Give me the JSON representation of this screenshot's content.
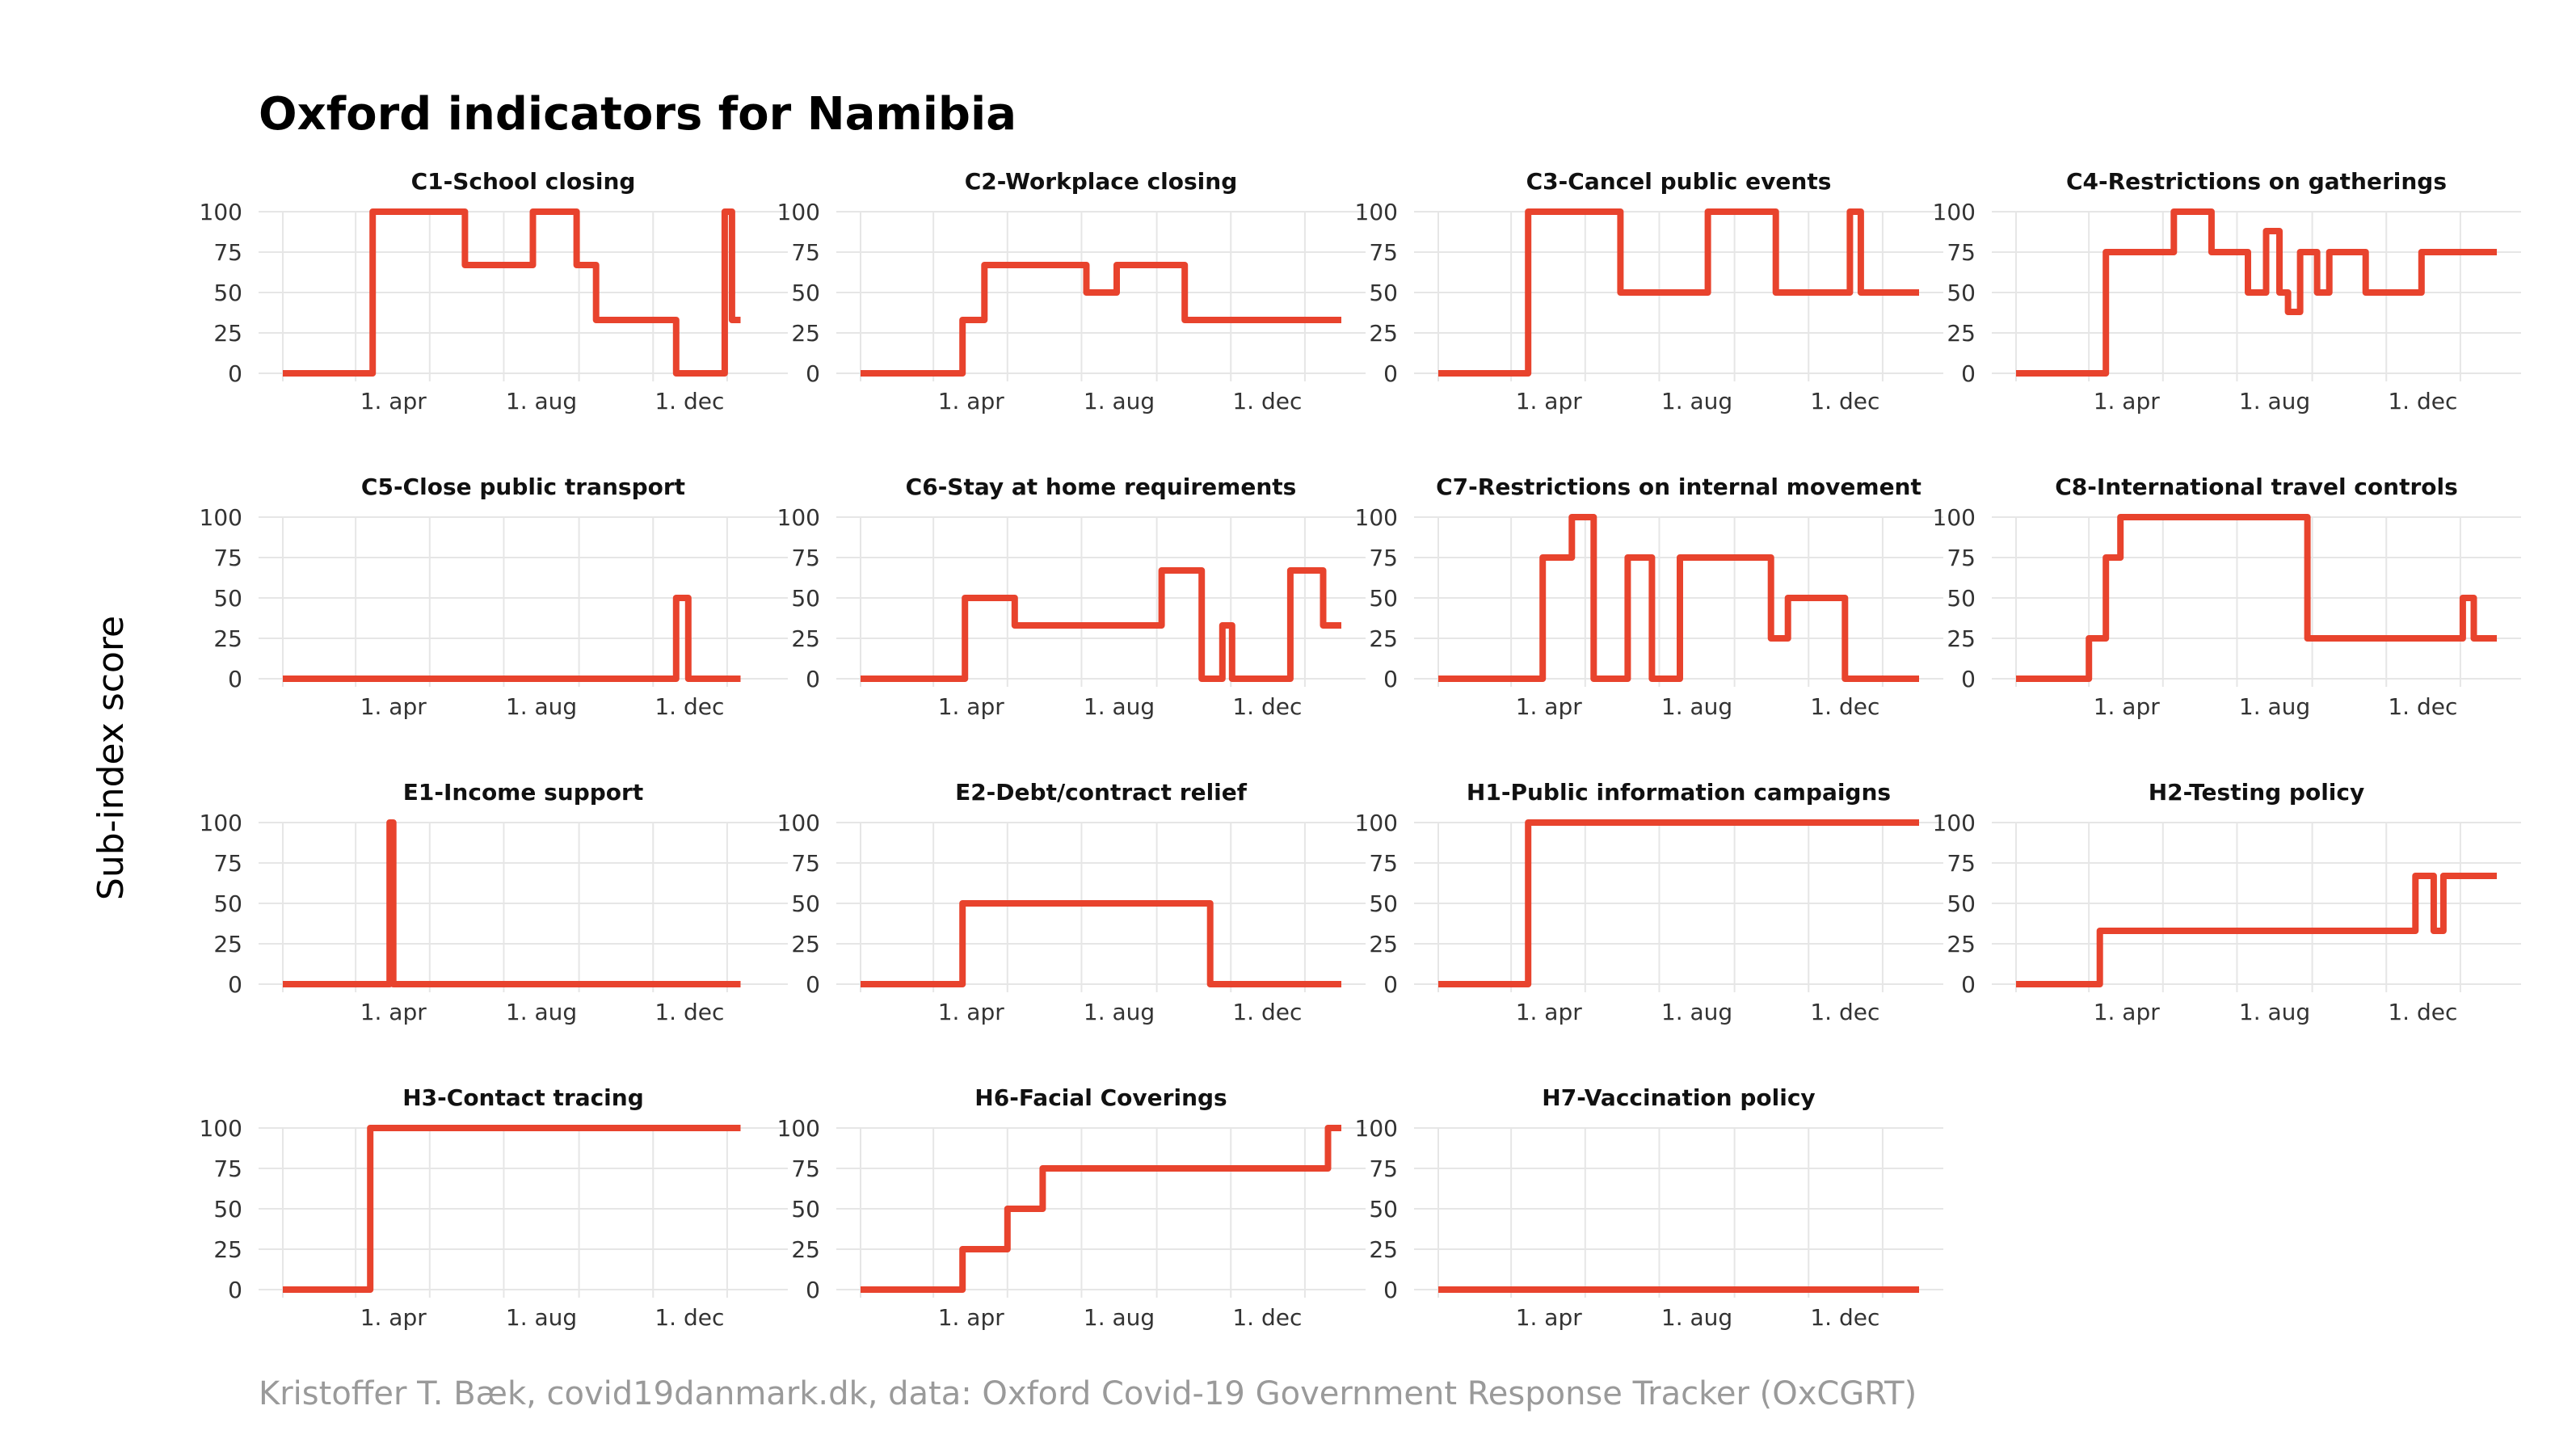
{
  "title": "Oxford indicators for Namibia",
  "ylabel": "Sub-index score",
  "caption": "Kristoffer T. Bæk, covid19danmark.dk, data: Oxford Covid-19 Government Response Tracker (OxCGRT)",
  "colors": {
    "line": "#e8432d",
    "grid": "#e6e6e6",
    "caption": "#9a9a9a"
  },
  "chart_data": {
    "type": "line",
    "x_unit": "date",
    "xlim": [
      "2020-01-01",
      "2021-01-31"
    ],
    "ylim": [
      0,
      100
    ],
    "yticks": [
      0,
      25,
      50,
      75,
      100
    ],
    "xticks": [
      {
        "date": "2020-04-01",
        "label": "1. apr"
      },
      {
        "date": "2020-08-01",
        "label": "1. aug"
      },
      {
        "date": "2020-12-01",
        "label": "1. dec"
      }
    ],
    "grid": true,
    "panels": [
      {
        "title": "C1-School closing",
        "points": [
          [
            "2020-01-01",
            0
          ],
          [
            "2020-03-15",
            0
          ],
          [
            "2020-03-15",
            100
          ],
          [
            "2020-05-30",
            100
          ],
          [
            "2020-05-30",
            67
          ],
          [
            "2020-07-25",
            67
          ],
          [
            "2020-07-25",
            100
          ],
          [
            "2020-08-30",
            100
          ],
          [
            "2020-08-30",
            67
          ],
          [
            "2020-09-15",
            67
          ],
          [
            "2020-09-15",
            33
          ],
          [
            "2020-11-20",
            33
          ],
          [
            "2020-11-20",
            0
          ],
          [
            "2020-12-30",
            0
          ],
          [
            "2020-12-30",
            100
          ],
          [
            "2021-01-05",
            100
          ],
          [
            "2021-01-05",
            33
          ],
          [
            "2021-01-12",
            33
          ]
        ]
      },
      {
        "title": "C2-Workplace closing",
        "points": [
          [
            "2020-01-01",
            0
          ],
          [
            "2020-03-25",
            0
          ],
          [
            "2020-03-25",
            33
          ],
          [
            "2020-04-12",
            33
          ],
          [
            "2020-04-12",
            67
          ],
          [
            "2020-07-05",
            67
          ],
          [
            "2020-07-05",
            50
          ],
          [
            "2020-07-30",
            50
          ],
          [
            "2020-07-30",
            67
          ],
          [
            "2020-09-24",
            67
          ],
          [
            "2020-09-24",
            33
          ],
          [
            "2021-01-31",
            33
          ]
        ]
      },
      {
        "title": "C3-Cancel public events",
        "points": [
          [
            "2020-01-01",
            0
          ],
          [
            "2020-03-15",
            0
          ],
          [
            "2020-03-15",
            100
          ],
          [
            "2020-05-30",
            100
          ],
          [
            "2020-05-30",
            50
          ],
          [
            "2020-08-10",
            50
          ],
          [
            "2020-08-10",
            100
          ],
          [
            "2020-10-05",
            100
          ],
          [
            "2020-10-05",
            50
          ],
          [
            "2020-12-05",
            50
          ],
          [
            "2020-12-05",
            100
          ],
          [
            "2020-12-14",
            100
          ],
          [
            "2020-12-14",
            50
          ],
          [
            "2021-01-31",
            50
          ]
        ]
      },
      {
        "title": "C4-Restrictions on gatherings",
        "points": [
          [
            "2020-01-01",
            0
          ],
          [
            "2020-03-15",
            0
          ],
          [
            "2020-03-15",
            75
          ],
          [
            "2020-05-10",
            75
          ],
          [
            "2020-05-10",
            100
          ],
          [
            "2020-06-10",
            100
          ],
          [
            "2020-06-10",
            75
          ],
          [
            "2020-07-10",
            75
          ],
          [
            "2020-07-10",
            50
          ],
          [
            "2020-07-25",
            50
          ],
          [
            "2020-07-25",
            88
          ],
          [
            "2020-08-05",
            88
          ],
          [
            "2020-08-05",
            50
          ],
          [
            "2020-08-12",
            50
          ],
          [
            "2020-08-12",
            38
          ],
          [
            "2020-08-22",
            38
          ],
          [
            "2020-08-22",
            75
          ],
          [
            "2020-09-05",
            75
          ],
          [
            "2020-09-05",
            50
          ],
          [
            "2020-09-15",
            50
          ],
          [
            "2020-09-15",
            75
          ],
          [
            "2020-10-15",
            75
          ],
          [
            "2020-10-15",
            50
          ],
          [
            "2020-11-30",
            50
          ],
          [
            "2020-11-30",
            75
          ],
          [
            "2021-01-31",
            75
          ]
        ]
      },
      {
        "title": "C5-Close public transport",
        "points": [
          [
            "2020-01-01",
            0
          ],
          [
            "2020-11-20",
            0
          ],
          [
            "2020-11-20",
            50
          ],
          [
            "2020-11-30",
            50
          ],
          [
            "2020-11-30",
            0
          ],
          [
            "2021-01-12",
            0
          ]
        ]
      },
      {
        "title": "C6-Stay at home requirements",
        "points": [
          [
            "2020-01-01",
            0
          ],
          [
            "2020-03-27",
            0
          ],
          [
            "2020-03-27",
            50
          ],
          [
            "2020-05-07",
            50
          ],
          [
            "2020-05-07",
            33
          ],
          [
            "2020-09-05",
            33
          ],
          [
            "2020-09-05",
            67
          ],
          [
            "2020-10-08",
            67
          ],
          [
            "2020-10-08",
            0
          ],
          [
            "2020-10-25",
            0
          ],
          [
            "2020-10-25",
            33
          ],
          [
            "2020-11-02",
            33
          ],
          [
            "2020-11-02",
            0
          ],
          [
            "2020-12-20",
            0
          ],
          [
            "2020-12-20",
            67
          ],
          [
            "2021-01-16",
            67
          ],
          [
            "2021-01-16",
            33
          ],
          [
            "2021-01-31",
            33
          ]
        ]
      },
      {
        "title": "C7-Restrictions on internal movement",
        "points": [
          [
            "2020-01-01",
            0
          ],
          [
            "2020-03-27",
            0
          ],
          [
            "2020-03-27",
            75
          ],
          [
            "2020-04-20",
            75
          ],
          [
            "2020-04-20",
            100
          ],
          [
            "2020-05-08",
            100
          ],
          [
            "2020-05-08",
            0
          ],
          [
            "2020-06-05",
            0
          ],
          [
            "2020-06-05",
            75
          ],
          [
            "2020-06-25",
            75
          ],
          [
            "2020-06-25",
            0
          ],
          [
            "2020-07-18",
            0
          ],
          [
            "2020-07-18",
            75
          ],
          [
            "2020-10-01",
            75
          ],
          [
            "2020-10-01",
            25
          ],
          [
            "2020-10-15",
            25
          ],
          [
            "2020-10-15",
            50
          ],
          [
            "2020-12-01",
            50
          ],
          [
            "2020-12-01",
            0
          ],
          [
            "2021-01-31",
            0
          ]
        ]
      },
      {
        "title": "C8-International travel controls",
        "points": [
          [
            "2020-01-01",
            0
          ],
          [
            "2020-03-01",
            0
          ],
          [
            "2020-03-01",
            25
          ],
          [
            "2020-03-15",
            25
          ],
          [
            "2020-03-15",
            75
          ],
          [
            "2020-03-27",
            75
          ],
          [
            "2020-03-27",
            100
          ],
          [
            "2020-08-28",
            100
          ],
          [
            "2020-08-28",
            25
          ],
          [
            "2021-01-03",
            25
          ],
          [
            "2021-01-03",
            50
          ],
          [
            "2021-01-12",
            50
          ],
          [
            "2021-01-12",
            25
          ],
          [
            "2021-01-31",
            25
          ]
        ]
      },
      {
        "title": "E1-Income support",
        "points": [
          [
            "2020-01-01",
            0
          ],
          [
            "2020-03-29",
            0
          ],
          [
            "2020-03-29",
            100
          ],
          [
            "2020-04-01",
            100
          ],
          [
            "2020-04-01",
            0
          ],
          [
            "2021-01-12",
            0
          ]
        ]
      },
      {
        "title": "E2-Debt/contract relief",
        "points": [
          [
            "2020-01-01",
            0
          ],
          [
            "2020-03-25",
            0
          ],
          [
            "2020-03-25",
            50
          ],
          [
            "2020-10-15",
            50
          ],
          [
            "2020-10-15",
            0
          ],
          [
            "2021-01-31",
            0
          ]
        ]
      },
      {
        "title": "H1-Public information campaigns",
        "points": [
          [
            "2020-01-01",
            0
          ],
          [
            "2020-03-15",
            0
          ],
          [
            "2020-03-15",
            100
          ],
          [
            "2021-01-31",
            100
          ]
        ]
      },
      {
        "title": "H2-Testing policy",
        "points": [
          [
            "2020-01-01",
            0
          ],
          [
            "2020-03-10",
            0
          ],
          [
            "2020-03-10",
            33
          ],
          [
            "2020-11-25",
            33
          ],
          [
            "2020-11-25",
            67
          ],
          [
            "2020-12-10",
            67
          ],
          [
            "2020-12-10",
            33
          ],
          [
            "2020-12-18",
            33
          ],
          [
            "2020-12-18",
            67
          ],
          [
            "2021-01-31",
            67
          ]
        ]
      },
      {
        "title": "H3-Contact tracing",
        "points": [
          [
            "2020-01-01",
            0
          ],
          [
            "2020-03-13",
            0
          ],
          [
            "2020-03-13",
            100
          ],
          [
            "2021-01-12",
            100
          ]
        ]
      },
      {
        "title": "H6-Facial Coverings",
        "points": [
          [
            "2020-01-01",
            0
          ],
          [
            "2020-03-25",
            0
          ],
          [
            "2020-03-25",
            25
          ],
          [
            "2020-05-01",
            25
          ],
          [
            "2020-05-01",
            50
          ],
          [
            "2020-05-30",
            50
          ],
          [
            "2020-05-30",
            75
          ],
          [
            "2021-01-20",
            75
          ],
          [
            "2021-01-20",
            100
          ],
          [
            "2021-01-31",
            100
          ]
        ]
      },
      {
        "title": "H7-Vaccination policy",
        "points": [
          [
            "2020-01-01",
            0
          ],
          [
            "2021-01-31",
            0
          ]
        ]
      }
    ]
  }
}
